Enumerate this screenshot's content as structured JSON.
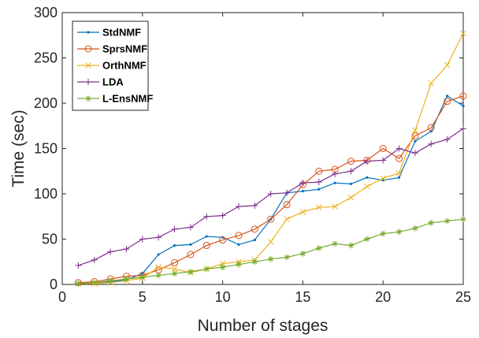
{
  "chart_data": {
    "type": "line",
    "xlabel": "Number of stages",
    "ylabel": "Time (sec)",
    "xlim": [
      0,
      25
    ],
    "ylim": [
      0,
      300
    ],
    "xticks": [
      0,
      5,
      10,
      15,
      20,
      25
    ],
    "yticks": [
      0,
      50,
      100,
      150,
      200,
      250,
      300
    ],
    "grid": false,
    "legend_position": "top-left",
    "x": [
      1,
      2,
      3,
      4,
      5,
      6,
      7,
      8,
      9,
      10,
      11,
      12,
      13,
      14,
      15,
      16,
      17,
      18,
      19,
      20,
      21,
      22,
      23,
      24,
      25
    ],
    "series": [
      {
        "name": "StdNMF",
        "color": "#0072BD",
        "marker": "dot",
        "values": [
          1,
          2,
          3,
          5,
          12,
          33,
          43,
          44,
          53,
          52,
          44,
          49,
          72,
          101,
          103,
          105,
          112,
          111,
          118,
          115,
          118,
          158,
          169,
          208,
          197
        ]
      },
      {
        "name": "SprsNMF",
        "color": "#D95319",
        "marker": "circle",
        "values": [
          2,
          3,
          6,
          9,
          10,
          16,
          24,
          33,
          43,
          49,
          54,
          61,
          72,
          88,
          110,
          125,
          127,
          136,
          137,
          150,
          139,
          164,
          173,
          202,
          208
        ]
      },
      {
        "name": "OrthNMF",
        "color": "#EDB120",
        "marker": "x",
        "values": [
          1,
          1,
          2,
          4,
          7,
          19,
          17,
          13,
          17,
          23,
          25,
          27,
          47,
          72,
          80,
          85,
          86,
          96,
          108,
          117,
          123,
          170,
          222,
          242,
          277
        ]
      },
      {
        "name": "LDA",
        "color": "#7E2F8E",
        "marker": "plus",
        "values": [
          21,
          27,
          36,
          39,
          50,
          52,
          61,
          63,
          75,
          76,
          86,
          87,
          100,
          101,
          112,
          113,
          122,
          125,
          136,
          137,
          150,
          145,
          155,
          160,
          172
        ]
      },
      {
        "name": "L-EnsNMF",
        "color": "#77AC30",
        "marker": "star",
        "values": [
          1,
          2,
          4,
          6,
          8,
          10,
          12,
          14,
          17,
          19,
          22,
          25,
          28,
          30,
          34,
          40,
          45,
          43,
          50,
          56,
          58,
          62,
          68,
          70,
          72
        ]
      }
    ]
  }
}
